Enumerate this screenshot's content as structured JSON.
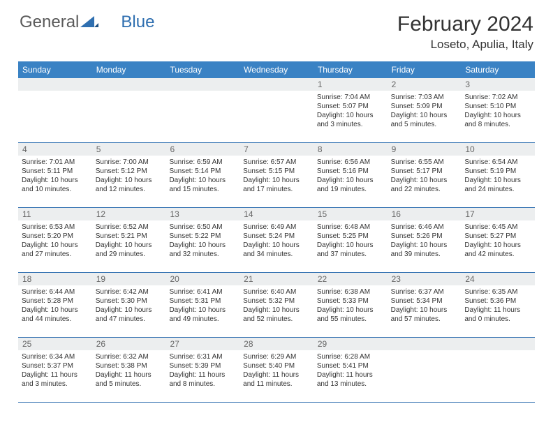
{
  "brand": {
    "part1": "General",
    "part2": "Blue"
  },
  "title": "February 2024",
  "location": "Loseto, Apulia, Italy",
  "colors": {
    "header_bg": "#3a82c4",
    "border": "#2f6fb0",
    "daynum_bg": "#eceeef",
    "text": "#333"
  },
  "day_names": [
    "Sunday",
    "Monday",
    "Tuesday",
    "Wednesday",
    "Thursday",
    "Friday",
    "Saturday"
  ],
  "weeks": [
    {
      "nums": [
        "",
        "",
        "",
        "",
        "1",
        "2",
        "3"
      ],
      "cells": [
        {},
        {},
        {},
        {},
        {
          "sunrise": "Sunrise: 7:04 AM",
          "sunset": "Sunset: 5:07 PM",
          "daylight1": "Daylight: 10 hours",
          "daylight2": "and 3 minutes."
        },
        {
          "sunrise": "Sunrise: 7:03 AM",
          "sunset": "Sunset: 5:09 PM",
          "daylight1": "Daylight: 10 hours",
          "daylight2": "and 5 minutes."
        },
        {
          "sunrise": "Sunrise: 7:02 AM",
          "sunset": "Sunset: 5:10 PM",
          "daylight1": "Daylight: 10 hours",
          "daylight2": "and 8 minutes."
        }
      ]
    },
    {
      "nums": [
        "4",
        "5",
        "6",
        "7",
        "8",
        "9",
        "10"
      ],
      "cells": [
        {
          "sunrise": "Sunrise: 7:01 AM",
          "sunset": "Sunset: 5:11 PM",
          "daylight1": "Daylight: 10 hours",
          "daylight2": "and 10 minutes."
        },
        {
          "sunrise": "Sunrise: 7:00 AM",
          "sunset": "Sunset: 5:12 PM",
          "daylight1": "Daylight: 10 hours",
          "daylight2": "and 12 minutes."
        },
        {
          "sunrise": "Sunrise: 6:59 AM",
          "sunset": "Sunset: 5:14 PM",
          "daylight1": "Daylight: 10 hours",
          "daylight2": "and 15 minutes."
        },
        {
          "sunrise": "Sunrise: 6:57 AM",
          "sunset": "Sunset: 5:15 PM",
          "daylight1": "Daylight: 10 hours",
          "daylight2": "and 17 minutes."
        },
        {
          "sunrise": "Sunrise: 6:56 AM",
          "sunset": "Sunset: 5:16 PM",
          "daylight1": "Daylight: 10 hours",
          "daylight2": "and 19 minutes."
        },
        {
          "sunrise": "Sunrise: 6:55 AM",
          "sunset": "Sunset: 5:17 PM",
          "daylight1": "Daylight: 10 hours",
          "daylight2": "and 22 minutes."
        },
        {
          "sunrise": "Sunrise: 6:54 AM",
          "sunset": "Sunset: 5:19 PM",
          "daylight1": "Daylight: 10 hours",
          "daylight2": "and 24 minutes."
        }
      ]
    },
    {
      "nums": [
        "11",
        "12",
        "13",
        "14",
        "15",
        "16",
        "17"
      ],
      "cells": [
        {
          "sunrise": "Sunrise: 6:53 AM",
          "sunset": "Sunset: 5:20 PM",
          "daylight1": "Daylight: 10 hours",
          "daylight2": "and 27 minutes."
        },
        {
          "sunrise": "Sunrise: 6:52 AM",
          "sunset": "Sunset: 5:21 PM",
          "daylight1": "Daylight: 10 hours",
          "daylight2": "and 29 minutes."
        },
        {
          "sunrise": "Sunrise: 6:50 AM",
          "sunset": "Sunset: 5:22 PM",
          "daylight1": "Daylight: 10 hours",
          "daylight2": "and 32 minutes."
        },
        {
          "sunrise": "Sunrise: 6:49 AM",
          "sunset": "Sunset: 5:24 PM",
          "daylight1": "Daylight: 10 hours",
          "daylight2": "and 34 minutes."
        },
        {
          "sunrise": "Sunrise: 6:48 AM",
          "sunset": "Sunset: 5:25 PM",
          "daylight1": "Daylight: 10 hours",
          "daylight2": "and 37 minutes."
        },
        {
          "sunrise": "Sunrise: 6:46 AM",
          "sunset": "Sunset: 5:26 PM",
          "daylight1": "Daylight: 10 hours",
          "daylight2": "and 39 minutes."
        },
        {
          "sunrise": "Sunrise: 6:45 AM",
          "sunset": "Sunset: 5:27 PM",
          "daylight1": "Daylight: 10 hours",
          "daylight2": "and 42 minutes."
        }
      ]
    },
    {
      "nums": [
        "18",
        "19",
        "20",
        "21",
        "22",
        "23",
        "24"
      ],
      "cells": [
        {
          "sunrise": "Sunrise: 6:44 AM",
          "sunset": "Sunset: 5:28 PM",
          "daylight1": "Daylight: 10 hours",
          "daylight2": "and 44 minutes."
        },
        {
          "sunrise": "Sunrise: 6:42 AM",
          "sunset": "Sunset: 5:30 PM",
          "daylight1": "Daylight: 10 hours",
          "daylight2": "and 47 minutes."
        },
        {
          "sunrise": "Sunrise: 6:41 AM",
          "sunset": "Sunset: 5:31 PM",
          "daylight1": "Daylight: 10 hours",
          "daylight2": "and 49 minutes."
        },
        {
          "sunrise": "Sunrise: 6:40 AM",
          "sunset": "Sunset: 5:32 PM",
          "daylight1": "Daylight: 10 hours",
          "daylight2": "and 52 minutes."
        },
        {
          "sunrise": "Sunrise: 6:38 AM",
          "sunset": "Sunset: 5:33 PM",
          "daylight1": "Daylight: 10 hours",
          "daylight2": "and 55 minutes."
        },
        {
          "sunrise": "Sunrise: 6:37 AM",
          "sunset": "Sunset: 5:34 PM",
          "daylight1": "Daylight: 10 hours",
          "daylight2": "and 57 minutes."
        },
        {
          "sunrise": "Sunrise: 6:35 AM",
          "sunset": "Sunset: 5:36 PM",
          "daylight1": "Daylight: 11 hours",
          "daylight2": "and 0 minutes."
        }
      ]
    },
    {
      "nums": [
        "25",
        "26",
        "27",
        "28",
        "29",
        "",
        ""
      ],
      "cells": [
        {
          "sunrise": "Sunrise: 6:34 AM",
          "sunset": "Sunset: 5:37 PM",
          "daylight1": "Daylight: 11 hours",
          "daylight2": "and 3 minutes."
        },
        {
          "sunrise": "Sunrise: 6:32 AM",
          "sunset": "Sunset: 5:38 PM",
          "daylight1": "Daylight: 11 hours",
          "daylight2": "and 5 minutes."
        },
        {
          "sunrise": "Sunrise: 6:31 AM",
          "sunset": "Sunset: 5:39 PM",
          "daylight1": "Daylight: 11 hours",
          "daylight2": "and 8 minutes."
        },
        {
          "sunrise": "Sunrise: 6:29 AM",
          "sunset": "Sunset: 5:40 PM",
          "daylight1": "Daylight: 11 hours",
          "daylight2": "and 11 minutes."
        },
        {
          "sunrise": "Sunrise: 6:28 AM",
          "sunset": "Sunset: 5:41 PM",
          "daylight1": "Daylight: 11 hours",
          "daylight2": "and 13 minutes."
        },
        {},
        {}
      ]
    }
  ]
}
